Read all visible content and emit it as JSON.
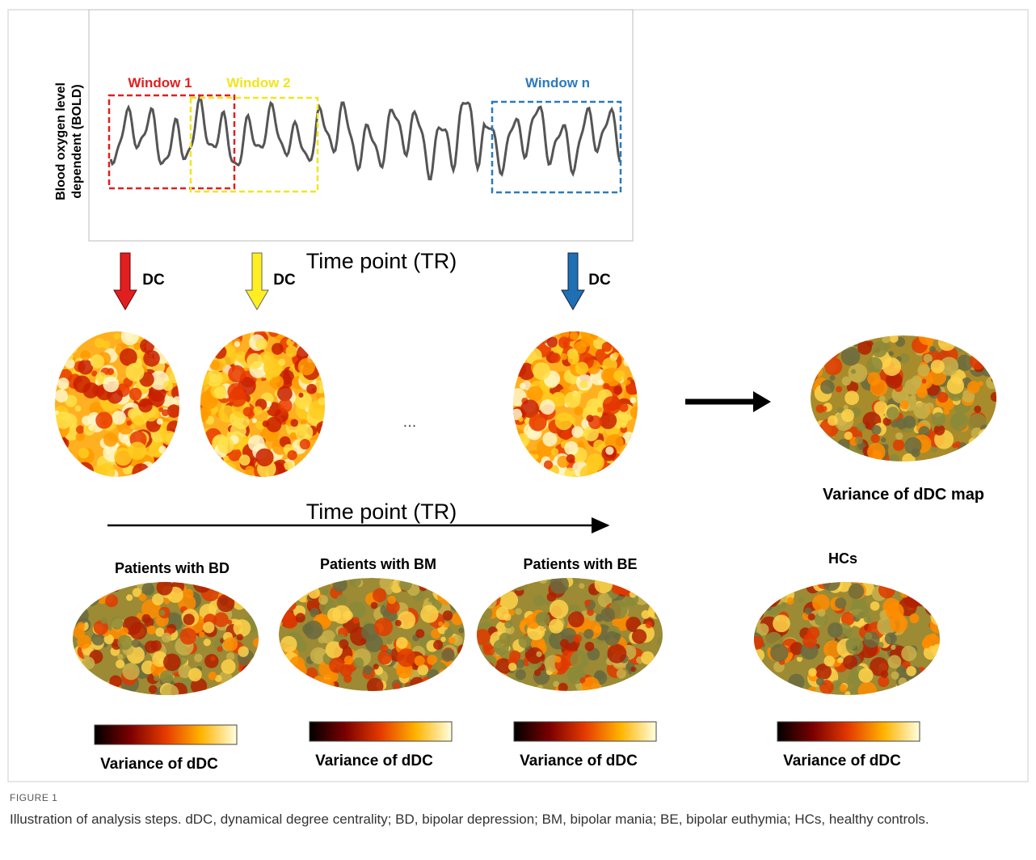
{
  "figure": {
    "label": "FIGURE 1",
    "caption": "Illustration of analysis steps. dDC, dynamical degree centrality; BD, bipolar depression; BM, bipolar mania; BE, bipolar euthymia; HCs, healthy controls."
  },
  "panel_top": {
    "y_label": [
      "Blood oxygen level",
      "dependent (BOLD)"
    ],
    "windows": [
      "Window 1",
      "Window 2",
      "Window n"
    ],
    "x_label": "Time point (TR)",
    "arrow_labels": [
      "DC",
      "DC",
      "DC"
    ],
    "ellipsis": "...",
    "timeline_label": "Time point (TR)",
    "map_label": "Variance of dDC map"
  },
  "groups": [
    {
      "title": "Patients with BD",
      "colorbar_label": "Variance of dDC"
    },
    {
      "title": "Patients with BM",
      "colorbar_label": "Variance of dDC"
    },
    {
      "title": "Patients with BE",
      "colorbar_label": "Variance of dDC"
    },
    {
      "title": "HCs",
      "colorbar_label": "Variance of dDC"
    }
  ]
}
